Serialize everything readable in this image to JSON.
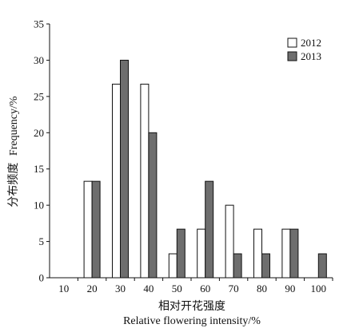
{
  "chart_data": {
    "type": "bar",
    "title": "",
    "xlabel": "相对开花强度",
    "xlabel_en": "Relative flowering intensity/%",
    "ylabel": "分布频度",
    "ylabel_en": "Frequency/%",
    "categories": [
      "10",
      "20",
      "30",
      "40",
      "50",
      "60",
      "70",
      "80",
      "90",
      "100"
    ],
    "ylim": [
      0,
      35
    ],
    "yticks": [
      "0",
      "5",
      "10",
      "15",
      "20",
      "25",
      "30",
      "35"
    ],
    "grid": false,
    "legend_position": "top-right",
    "series": [
      {
        "name": "2012",
        "color": "#ffffff",
        "values": [
          0,
          13.3,
          26.7,
          26.7,
          3.3,
          6.7,
          10,
          6.7,
          6.7,
          0
        ]
      },
      {
        "name": "2013",
        "color": "#6e6e6e",
        "values": [
          0,
          13.3,
          30,
          20,
          6.7,
          13.3,
          3.3,
          3.3,
          6.7,
          3.3
        ]
      }
    ]
  }
}
